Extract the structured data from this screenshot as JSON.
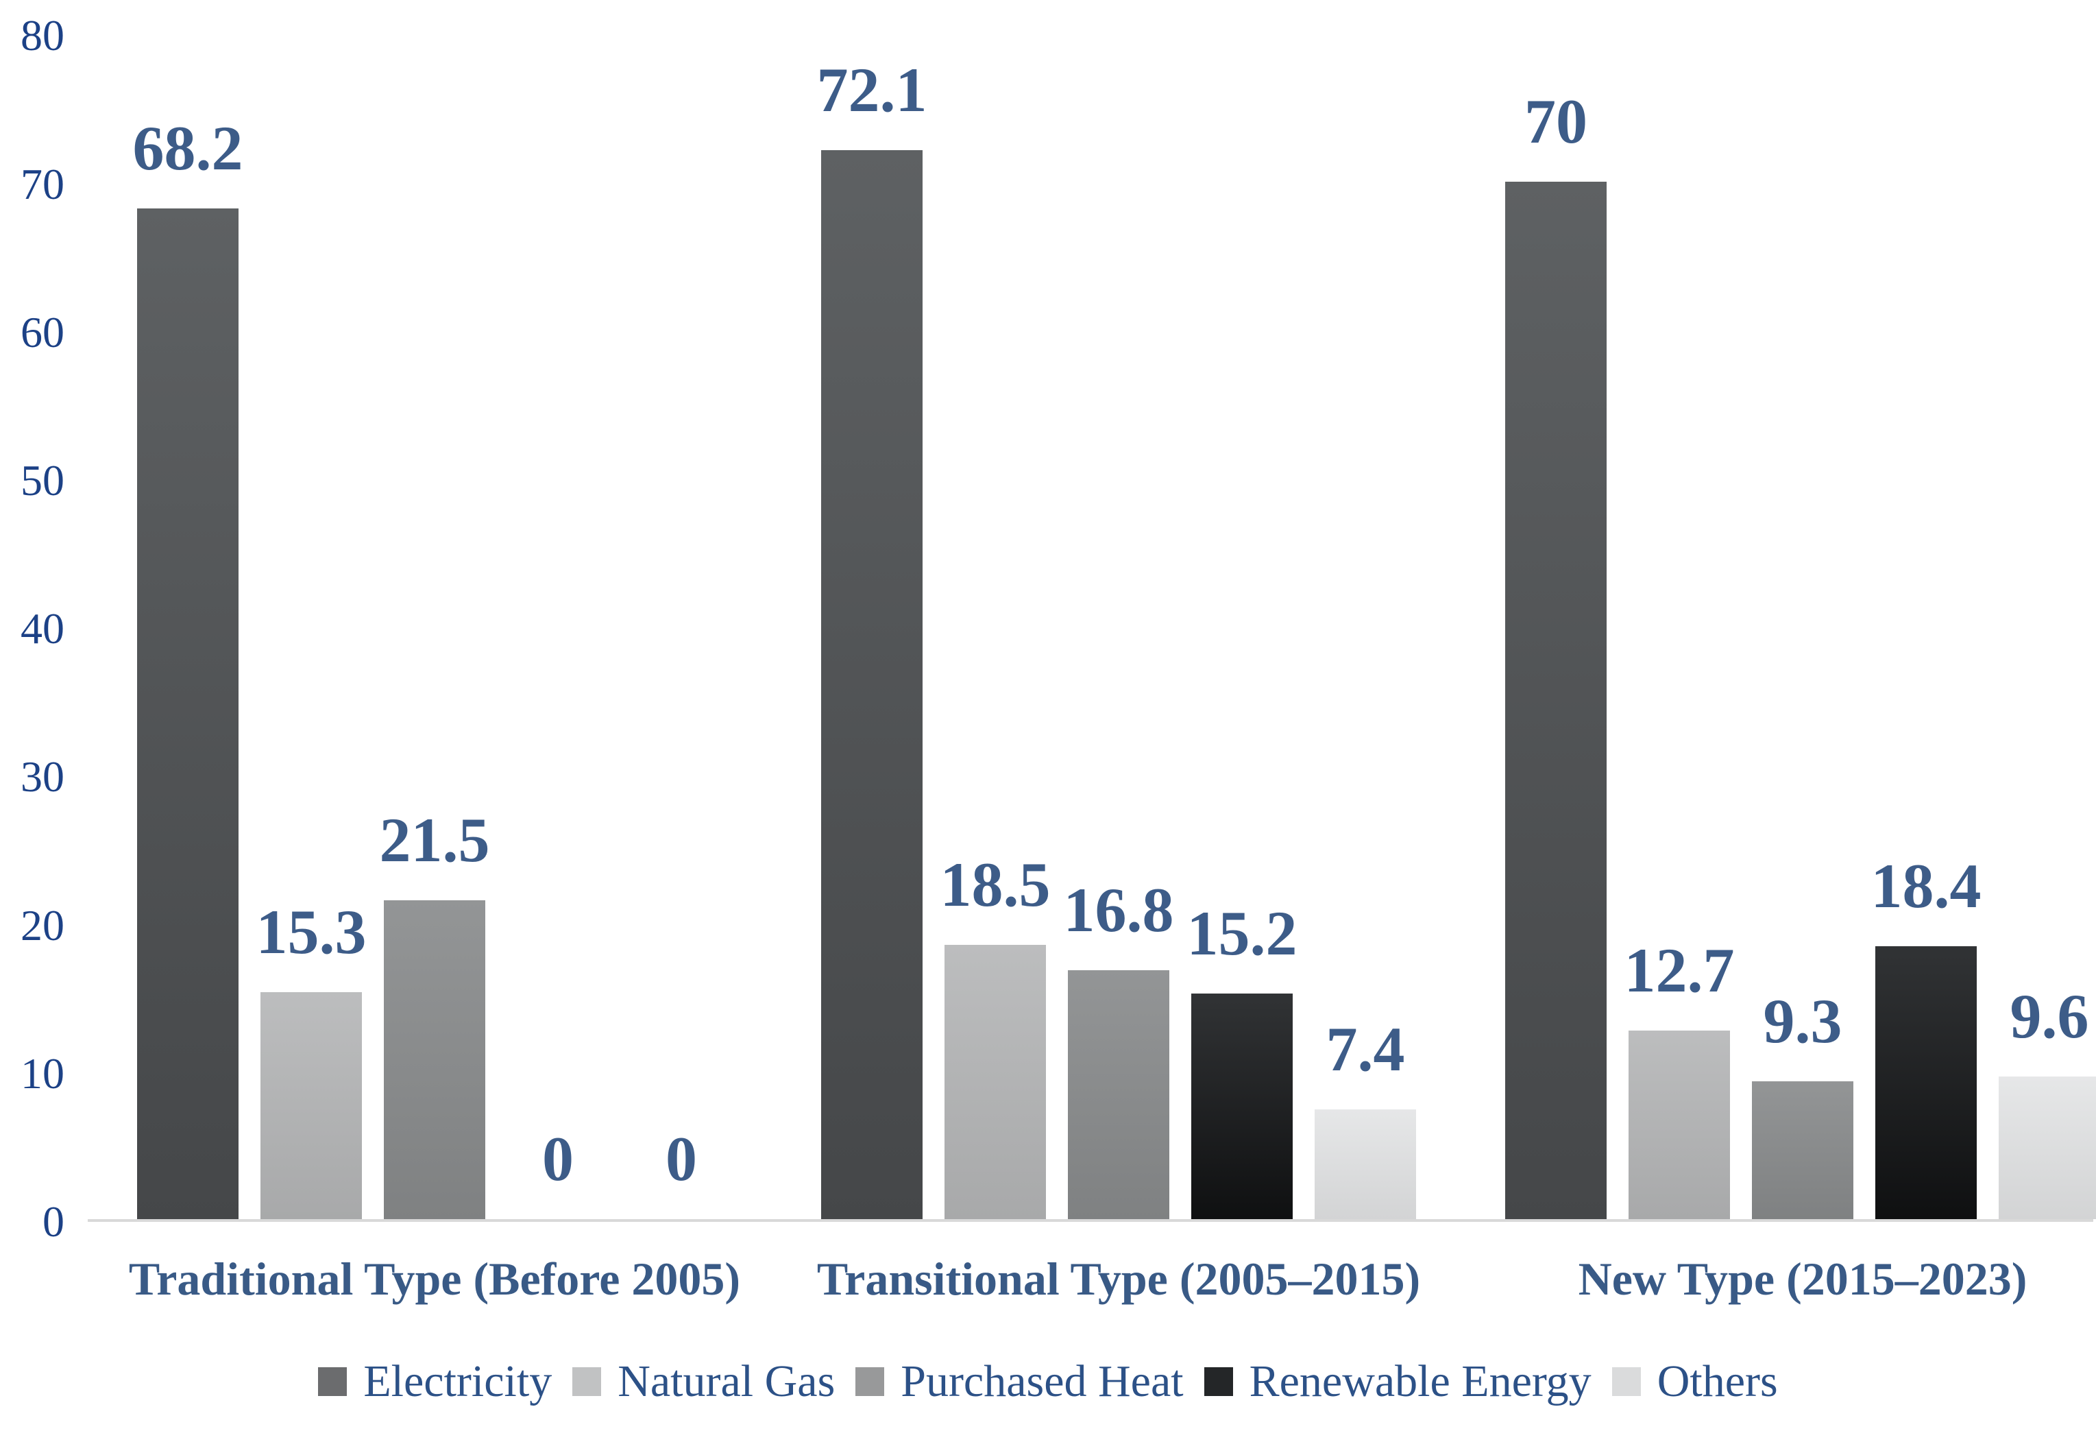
{
  "chart_data": {
    "type": "bar",
    "title": "",
    "xlabel": "",
    "ylabel": "",
    "categories": [
      "Traditional Type (Before 2005)",
      "Transitional Type (2005–2015)",
      "New Type (2015–2023)"
    ],
    "series": [
      {
        "name": "Electricity",
        "values": [
          68.2,
          72.1,
          70
        ]
      },
      {
        "name": "Natural Gas",
        "values": [
          15.3,
          18.5,
          12.7
        ]
      },
      {
        "name": "Purchased Heat",
        "values": [
          21.5,
          16.8,
          9.3
        ]
      },
      {
        "name": "Renewable Energy",
        "values": [
          0,
          15.2,
          18.4
        ]
      },
      {
        "name": "Others",
        "values": [
          0,
          7.4,
          9.6
        ]
      }
    ],
    "value_labels": [
      [
        "68.2",
        "15.3",
        "21.5",
        "0",
        "0"
      ],
      [
        "72.1",
        "18.5",
        "16.8",
        "15.2",
        "7.4"
      ],
      [
        "70",
        "12.7",
        "9.3",
        "18.4",
        "9.6"
      ]
    ],
    "y_ticks": [
      "0",
      "10",
      "20",
      "30",
      "40",
      "50",
      "60",
      "70",
      "80"
    ],
    "ylim": [
      0,
      80
    ],
    "grid": false,
    "legend_position": "bottom"
  },
  "colors": {
    "background": "#ffffff",
    "axis_line": "#d9d9d9",
    "tick_text": "#1c4186",
    "value_text": "#3d5c88",
    "category_text": "#395a86",
    "legend_text": "#2c5187",
    "series": {
      "Electricity": {
        "top": "#5e6163",
        "bottom": "#454749",
        "legend": "#6b6c6e"
      },
      "Natural Gas": {
        "top": "#bcbdbe",
        "bottom": "#a8a9aa",
        "legend": "#c1c2c3"
      },
      "Purchased Heat": {
        "top": "#939596",
        "bottom": "#7f8182",
        "legend": "#98999a"
      },
      "Renewable Energy": {
        "top": "#313335",
        "bottom": "#0f1011",
        "legend": "#242628"
      },
      "Others": {
        "top": "#e6e7e8",
        "bottom": "#d3d4d5",
        "legend": "#dadbdc"
      }
    }
  }
}
